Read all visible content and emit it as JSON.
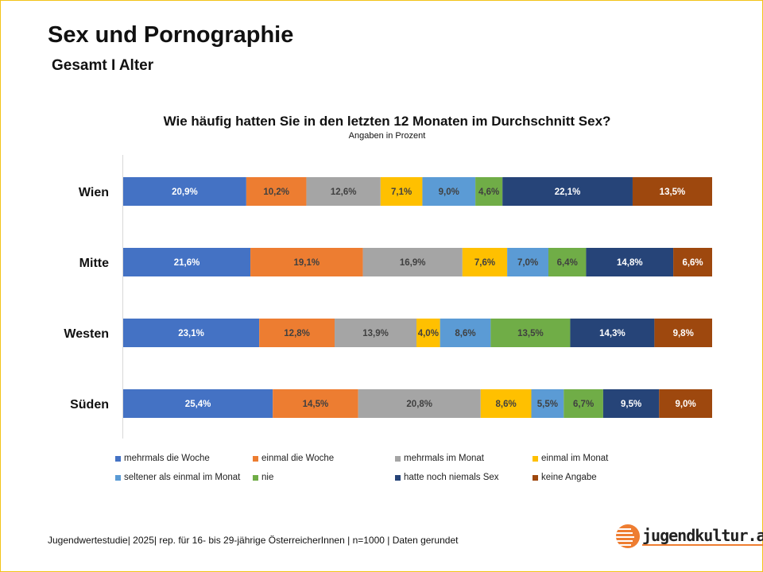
{
  "header": {
    "title": "Sex und Pornographie",
    "subtitle": "Gesamt I Alter"
  },
  "chart_data": {
    "type": "bar",
    "orientation": "horizontal-stacked-100",
    "title": "Wie häufig hatten Sie in den letzten 12 Monaten im Durchschnitt Sex?",
    "subtitle": "Angaben in Prozent",
    "categories": [
      "Wien",
      "Mitte",
      "Westen",
      "Süden"
    ],
    "series": [
      {
        "name": "mehrmals die Woche",
        "color": "#4472c4",
        "label_color": "#ffffff",
        "values": [
          20.9,
          21.6,
          23.1,
          25.4
        ],
        "labels": [
          "20,9%",
          "21,6%",
          "23,1%",
          "25,4%"
        ]
      },
      {
        "name": "einmal die Woche",
        "color": "#ed7d31",
        "label_color": "#404040",
        "values": [
          10.2,
          19.1,
          12.8,
          14.5
        ],
        "labels": [
          "10,2%",
          "19,1%",
          "12,8%",
          "14,5%"
        ]
      },
      {
        "name": "mehrmals im Monat",
        "color": "#a5a5a5",
        "label_color": "#404040",
        "values": [
          12.6,
          16.9,
          13.9,
          20.8
        ],
        "labels": [
          "12,6%",
          "16,9%",
          "13,9%",
          "20,8%"
        ]
      },
      {
        "name": "einmal im Monat",
        "color": "#ffc000",
        "label_color": "#404040",
        "values": [
          7.1,
          7.6,
          4.0,
          8.6
        ],
        "labels": [
          "7,1%",
          "7,6%",
          "4,0%",
          "8,6%"
        ]
      },
      {
        "name": "seltener als einmal im Monat",
        "color": "#5b9bd5",
        "label_color": "#404040",
        "values": [
          9.0,
          7.0,
          8.6,
          5.5
        ],
        "labels": [
          "9,0%",
          "7,0%",
          "8,6%",
          "5,5%"
        ]
      },
      {
        "name": "nie",
        "color": "#70ad47",
        "label_color": "#404040",
        "values": [
          4.6,
          6.4,
          13.5,
          6.7
        ],
        "labels": [
          "4,6%",
          "6,4%",
          "13,5%",
          "6,7%"
        ]
      },
      {
        "name": "hatte noch niemals Sex",
        "color": "#264478",
        "label_color": "#ffffff",
        "values": [
          22.1,
          14.8,
          14.3,
          9.5
        ],
        "labels": [
          "22,1%",
          "14,8%",
          "14,3%",
          "9,5%"
        ]
      },
      {
        "name": "keine Angabe",
        "color": "#9e480e",
        "label_color": "#ffffff",
        "values": [
          13.5,
          6.6,
          9.8,
          9.0
        ],
        "labels": [
          "13,5%",
          "6,6%",
          "9,8%",
          "9,0%"
        ]
      }
    ],
    "xlim": [
      0,
      100
    ],
    "grid": false,
    "legend": "bottom"
  },
  "footer": {
    "text": "Jugendwertestudie| 2025| rep. für 16- bis 29-jährige ÖsterreicherInnen | n=1000 | Daten gerundet"
  },
  "logo": {
    "text": "jugendkultur.at"
  }
}
